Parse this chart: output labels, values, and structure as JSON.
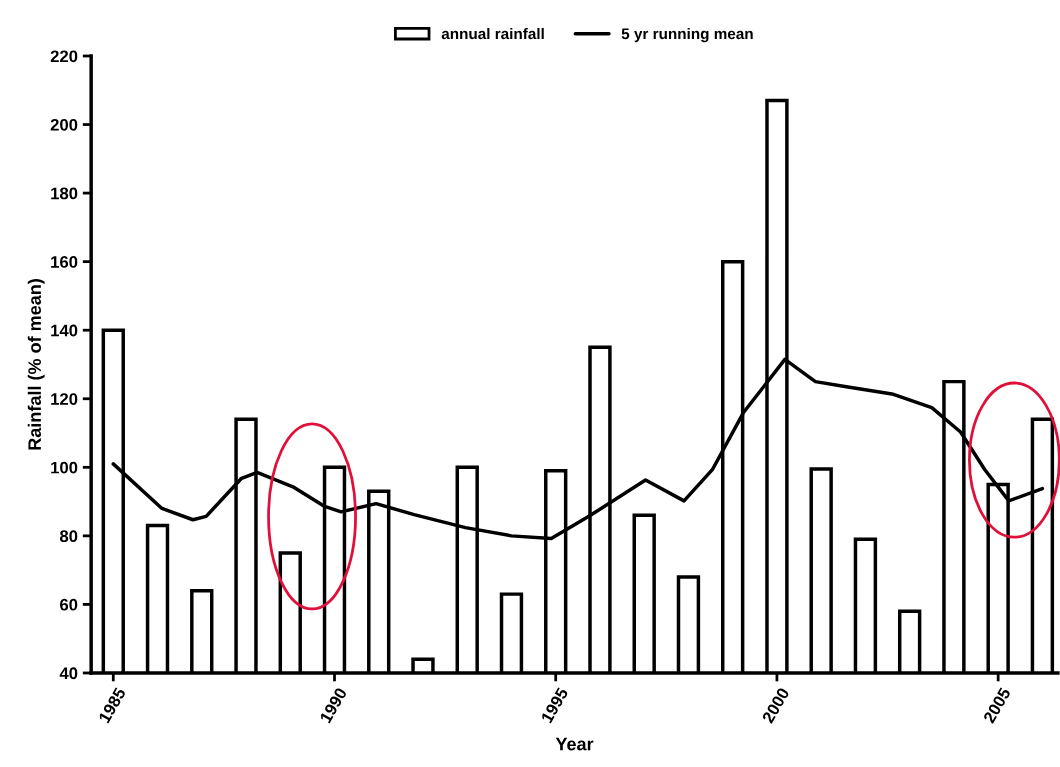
{
  "chart_data": {
    "type": "bar",
    "xlabel": "Year",
    "ylabel": "Rainfall (% of mean)",
    "x": [
      1985,
      1986,
      1987,
      1988,
      1989,
      1990,
      1991,
      1992,
      1993,
      1994,
      1995,
      1996,
      1997,
      1998,
      1999,
      2000,
      2001,
      2002,
      2003,
      2004,
      2005,
      2006
    ],
    "series": [
      {
        "name": "annual rainfall",
        "color": "#ffffff",
        "values": [
          140,
          83,
          64,
          114,
          75,
          100,
          93,
          44,
          100,
          63,
          99,
          135,
          86,
          68,
          160,
          207,
          99.5,
          79,
          58,
          125,
          95,
          114
        ]
      },
      {
        "name": "5 yr running mean",
        "type": "line",
        "color": "#000000",
        "x": [
          1985.0,
          1986.1,
          1986.8,
          1987.1,
          1987.9,
          1988.25,
          1989.06,
          1989.76,
          1990.15,
          1990.94,
          1991.8,
          1992.96,
          1994.0,
          1994.9,
          1995.75,
          1997.03,
          1997.9,
          1998.54,
          1999.24,
          2000.18,
          2000.87,
          2001.57,
          2002.6,
          2003.5,
          2004.15,
          2004.7,
          2005.24,
          2006.0
        ],
        "values": [
          101,
          88,
          84.7,
          85.7,
          96.8,
          98.5,
          94.3,
          88.7,
          87,
          89.4,
          86.2,
          82.4,
          80,
          79.2,
          85.7,
          96.3,
          90.2,
          99.3,
          115.9,
          131.5,
          125,
          123.5,
          121.4,
          117.4,
          110.3,
          99.3,
          90.2,
          93.8
        ]
      }
    ],
    "xlim": [
      1984.5,
      2006.35
    ],
    "xticks": [
      {
        "value": 1985,
        "label": "1985"
      },
      {
        "value": 1990,
        "label": "1990"
      },
      {
        "value": 1995,
        "label": "1995"
      },
      {
        "value": 2000,
        "label": "2000"
      },
      {
        "value": 2005,
        "label": "2005"
      }
    ],
    "ylim": [
      40,
      220
    ],
    "yticks": [
      40,
      60,
      80,
      100,
      120,
      140,
      160,
      180,
      200,
      220
    ],
    "grid": false,
    "legend": "top",
    "line_style": "solid",
    "marker": "none"
  }
}
